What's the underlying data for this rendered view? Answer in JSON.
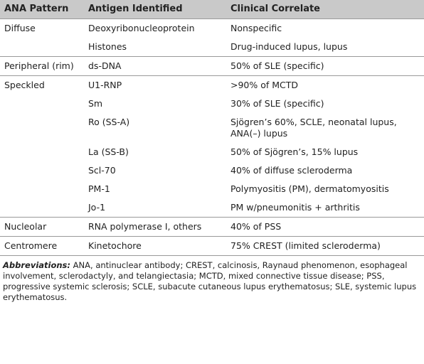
{
  "table": {
    "header": [
      "ANA Pattern",
      "Antigen Identified",
      "Clinical Correlate"
    ],
    "groups": [
      {
        "pattern": "Diffuse",
        "rows": [
          [
            "Deoxyribonucleoprotein",
            "Nonspecific"
          ],
          [
            "Histones",
            "Drug-induced lupus, lupus"
          ]
        ]
      },
      {
        "pattern": "Peripheral (rim)",
        "rows": [
          [
            "ds-DNA",
            "50% of SLE (specific)"
          ]
        ]
      },
      {
        "pattern": "Speckled",
        "rows": [
          [
            "U1-RNP",
            ">90% of MCTD"
          ],
          [
            "Sm",
            "30% of SLE (specific)"
          ],
          [
            "Ro (SS-A)",
            "Sjögren’s 60%, SCLE, neonatal lupus, ANA(–) lupus"
          ],
          [
            "La (SS-B)",
            "50% of Sjögren’s, 15% lupus"
          ],
          [
            "Scl-70",
            "40% of diffuse scleroderma"
          ],
          [
            "PM-1",
            "Polymyositis (PM), dermatomyositis"
          ],
          [
            "Jo-1",
            "PM w/pneumonitis + arthritis"
          ]
        ]
      },
      {
        "pattern": "Nucleolar",
        "rows": [
          [
            "RNA polymerase I, others",
            "40% of PSS"
          ]
        ]
      },
      {
        "pattern": "Centromere",
        "rows": [
          [
            "Kinetochore",
            "75% CREST (limited scleroderma)"
          ]
        ]
      }
    ]
  },
  "footnote": {
    "label": "Abbreviations:",
    "text": "ANA, antinuclear antibody; CREST, calcinosis, Raynaud phenomenon, esophageal involvement, sclerodactyly, and telangiectasia; MCTD, mixed connective tissue disease; PSS, progressive systemic sclerosis; SCLE, subacute cutaneous lupus erythematosus; SLE, systemic lupus erythematosus."
  }
}
